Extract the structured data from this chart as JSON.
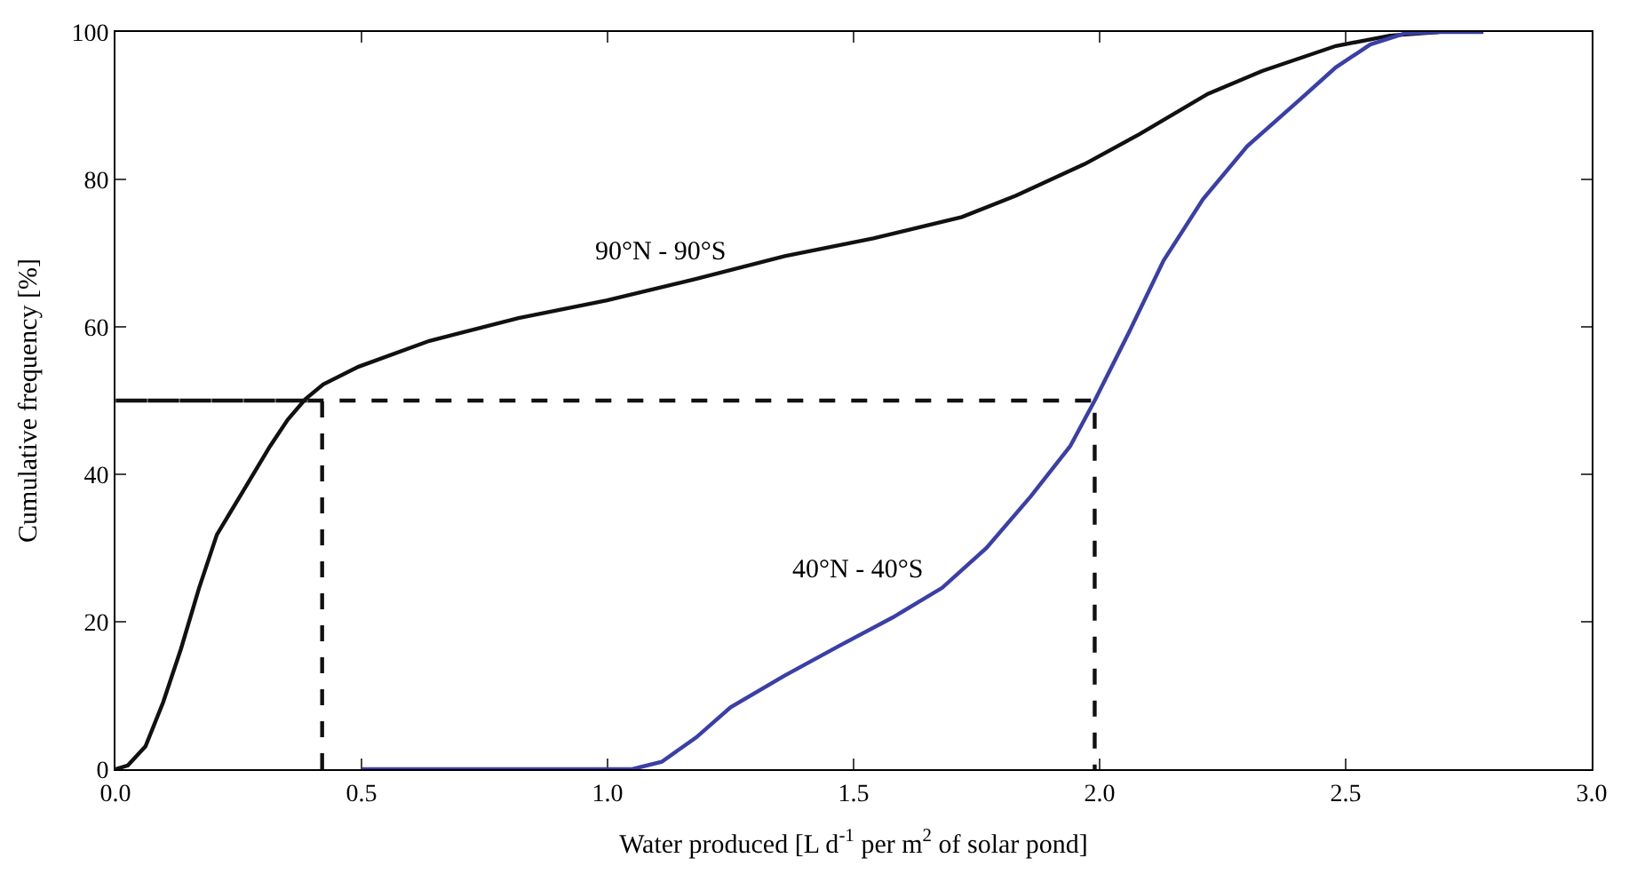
{
  "chart_data": {
    "type": "line",
    "xlabel": "Water produced [L d$^{-1}$ per m$^{2}$ of solar pond]",
    "ylabel": "Cumulative frequency [%]",
    "xlim": [
      0,
      3
    ],
    "xticks": [
      {
        "value": 0,
        "label": "0.0"
      },
      0.5,
      {
        "value": 1,
        "label": "1.0"
      },
      1.5,
      {
        "value": 2,
        "label": "2.0"
      },
      2.5,
      {
        "value": 3,
        "label": "3.0"
      }
    ],
    "ylim": [
      0,
      100
    ],
    "yticks": [
      0,
      20,
      40,
      60,
      80,
      100
    ],
    "marker": "none",
    "series": [
      {
        "name": "90°N - 90°S",
        "color": "#111111",
        "line_style": "solid",
        "x": [
          0,
          0.025,
          0.061,
          0.097,
          0.133,
          0.17,
          0.206,
          0.26,
          0.314,
          0.35,
          0.386,
          0.422,
          0.494,
          0.638,
          0.819,
          0.999,
          1.179,
          1.36,
          1.54,
          1.72,
          1.83,
          1.97,
          2.08,
          2.22,
          2.33,
          2.48,
          2.59,
          2.69
        ],
        "values": [
          0,
          0.5,
          3.1,
          9.1,
          16.3,
          24.6,
          31.8,
          37.8,
          43.8,
          47.4,
          50.2,
          52.2,
          54.6,
          58.1,
          61.2,
          63.6,
          66.5,
          69.6,
          72,
          74.9,
          77.8,
          82.1,
          86.1,
          91.6,
          94.7,
          98.1,
          99.5,
          100
        ]
      },
      {
        "name": "40°N - 40°S",
        "color": "#3a3fa8",
        "line_style": "solid",
        "x": [
          0.5,
          1.05,
          1.11,
          1.18,
          1.25,
          1.36,
          1.47,
          1.58,
          1.68,
          1.77,
          1.86,
          1.94,
          1.99,
          2.06,
          2.13,
          2.21,
          2.3,
          2.41,
          2.48,
          2.55,
          2.62,
          2.69,
          2.78
        ],
        "values": [
          0,
          0,
          1,
          4.3,
          8.4,
          12.7,
          16.7,
          20.6,
          24.6,
          30,
          37,
          43.8,
          50,
          59.3,
          69,
          77.3,
          84.5,
          91,
          95.2,
          98.3,
          99.8,
          100,
          100
        ]
      },
      {
        "color": "#111111",
        "line_style": "dashed",
        "x": [
          0.42,
          0.42,
          0,
          1.99,
          1.99
        ],
        "values": [
          0,
          50,
          50,
          50,
          0
        ]
      }
    ]
  }
}
